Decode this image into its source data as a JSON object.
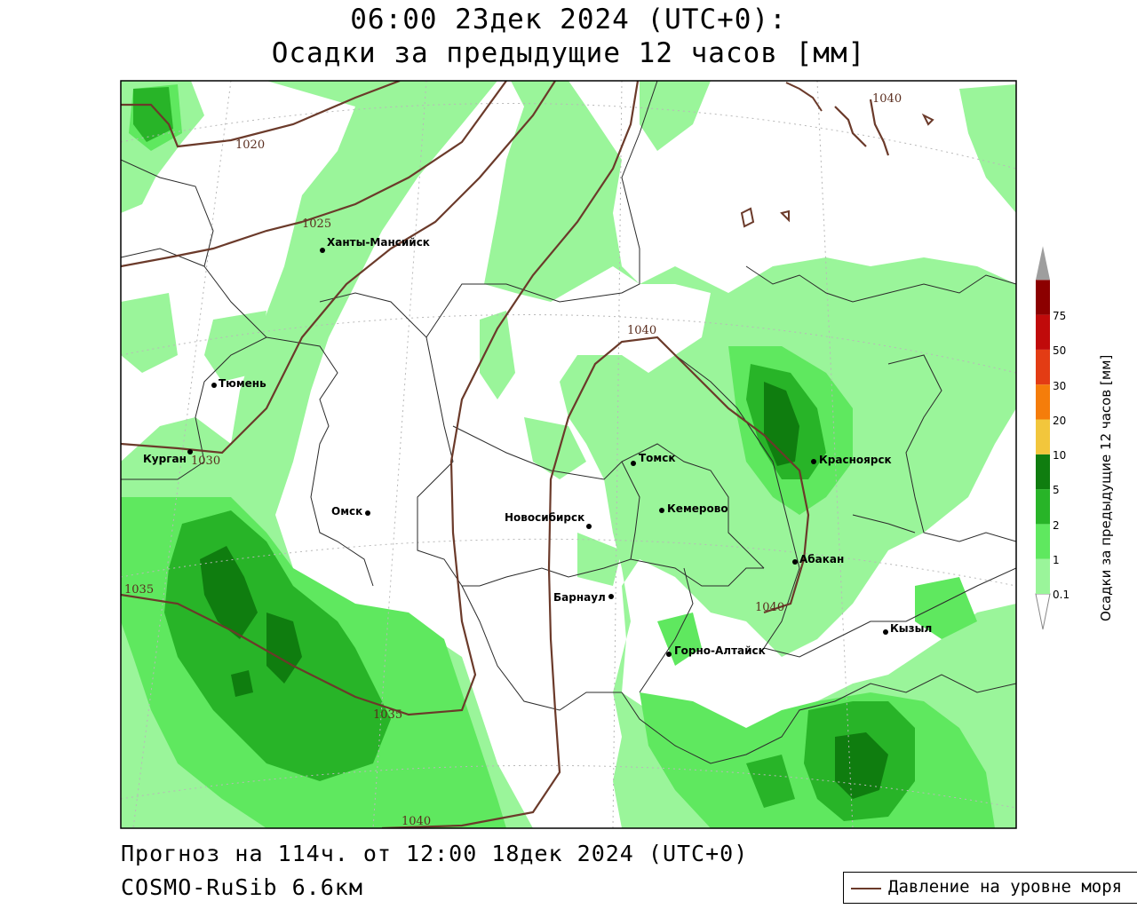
{
  "title": {
    "line1": "06:00 23дек 2024 (UTC+0):",
    "line2": "Осадки за предыдущие 12 часов [мм]"
  },
  "footer": {
    "forecast": "Прогноз на 114ч. от 12:00 18дек 2024 (UTC+0)",
    "model": "COSMO-RuSib 6.6км"
  },
  "legend": {
    "line_label": "Давление на уровне моря",
    "line_color": "#6b3a2a"
  },
  "colorbar": {
    "title": "Осадки за предыдущие 12 часов [мм]",
    "levels": [
      "0.1",
      "1",
      "2",
      "5",
      "10",
      "20",
      "30",
      "50",
      "75"
    ],
    "colors": [
      "#9af59a",
      "#5fe85f",
      "#28b428",
      "#0f7d0f",
      "#f2c63c",
      "#f57d0a",
      "#e33c14",
      "#c00a0a",
      "#8c0000",
      "#9e9e9e"
    ]
  },
  "cities": [
    {
      "name": "Ханты-Мансийск"
    },
    {
      "name": "Тюмень"
    },
    {
      "name": "Курган"
    },
    {
      "name": "Омск"
    },
    {
      "name": "Новосибирск"
    },
    {
      "name": "Томск"
    },
    {
      "name": "Кемерово"
    },
    {
      "name": "Барнаул"
    },
    {
      "name": "Горно-Алтайск"
    },
    {
      "name": "Красноярск"
    },
    {
      "name": "Абакан"
    },
    {
      "name": "Кызыл"
    }
  ],
  "isobar_labels": [
    "1020",
    "1025",
    "1030",
    "1035",
    "1035",
    "1040",
    "1040",
    "1040",
    "1040"
  ]
}
